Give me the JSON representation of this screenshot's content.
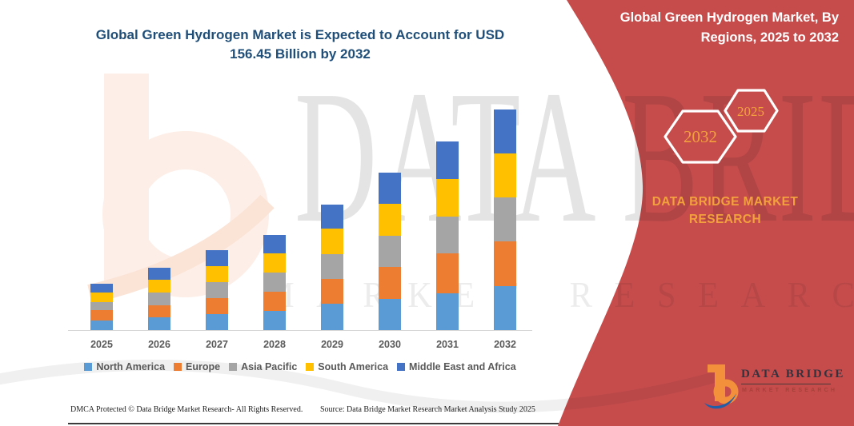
{
  "title": "Global Green Hydrogen Market is Expected to Account for USD 156.45 Billion by 2032",
  "banner": {
    "title": "Global Green Hydrogen Market, By Regions, 2025 to 2032",
    "background_color": "#C64C4C",
    "accent_color": "#F2A13C",
    "hexagons": [
      {
        "label": "2032"
      },
      {
        "label": "2025"
      }
    ],
    "brand_text": "DATA BRIDGE MARKET RESEARCH"
  },
  "watermark": {
    "line1": "DATA BRIDGE",
    "line2": "MARKET RESEARCH"
  },
  "logo": {
    "name": "DATA BRIDGE",
    "subtitle": "MARKET RESEARCH"
  },
  "footer": {
    "left": "DMCA Protected © Data Bridge Market Research-  All Rights Reserved.",
    "right": "Source: Data Bridge Market Research  Market Analysis Study 2025"
  },
  "chart_data": {
    "type": "bar",
    "stacked": true,
    "title": "Global Green Hydrogen Market is Expected to Account for USD 156.45 Billion by 2032",
    "unit": "USD Billion",
    "categories": [
      "2025",
      "2026",
      "2027",
      "2028",
      "2029",
      "2030",
      "2031",
      "2032"
    ],
    "series": [
      {
        "name": "North America",
        "color": "#5B9BD5",
        "values": [
          6.9,
          8.9,
          11.3,
          13.5,
          18.4,
          22.3,
          25.8,
          31.3
        ]
      },
      {
        "name": "Europe",
        "color": "#ED7D31",
        "values": [
          7.2,
          8.9,
          11.3,
          13.6,
          17.8,
          22.4,
          28.3,
          31.4
        ]
      },
      {
        "name": "Asia Pacific",
        "color": "#A5A5A5",
        "values": [
          5.5,
          8.8,
          11.2,
          13.5,
          17.6,
          22.3,
          26.4,
          31.3
        ]
      },
      {
        "name": "South America",
        "color": "#FFC000",
        "values": [
          7.2,
          8.9,
          11.3,
          13.5,
          18.2,
          22.4,
          26.4,
          31.2
        ]
      },
      {
        "name": "Middle East and Africa",
        "color": "#4472C4",
        "values": [
          6.3,
          8.9,
          11.2,
          13.5,
          17.1,
          22.3,
          26.9,
          31.25
        ]
      }
    ],
    "totals": [
      33.1,
      44.4,
      56.3,
      67.6,
      89.1,
      111.7,
      133.8,
      156.45
    ],
    "xlabel": "",
    "ylabel": "",
    "y_axis_labels_shown": false,
    "grid": false,
    "legend_position": "bottom"
  }
}
